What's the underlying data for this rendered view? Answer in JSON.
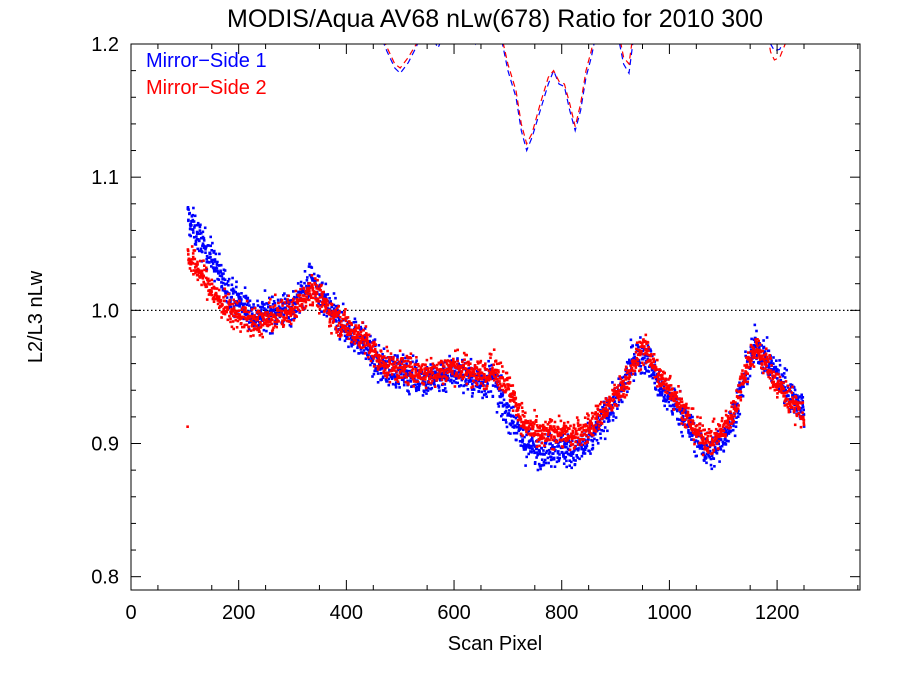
{
  "chart_data": {
    "type": "scatter",
    "title": "MODIS/Aqua AV68 nLw(678) Ratio for 2010 300",
    "xlabel": "Scan Pixel",
    "ylabel": "L2/L3 nLw",
    "xlim": [
      0,
      1354
    ],
    "ylim": [
      0.79,
      1.2
    ],
    "xticks": [
      0,
      200,
      400,
      600,
      800,
      1000,
      1200
    ],
    "xtick_labels": [
      "0",
      "200",
      "400",
      "600",
      "800",
      "1000",
      "1200"
    ],
    "yticks": [
      0.8,
      0.9,
      1.0,
      1.1,
      1.2
    ],
    "ytick_labels": [
      "0.8",
      "0.9",
      "1.0",
      "1.1",
      "1.2"
    ],
    "reference_line": {
      "y": 1.0,
      "style": "dotted",
      "color": "#000000"
    },
    "legend": {
      "position": "top-left",
      "entries": [
        "Mirror−Side 1",
        "Mirror−Side 2"
      ]
    },
    "grid": false,
    "series": [
      {
        "name": "Mirror−Side 1",
        "color": "#0000ff",
        "marker": "points",
        "curve": [
          [
            105,
            1.07
          ],
          [
            130,
            1.052
          ],
          [
            150,
            1.04
          ],
          [
            170,
            1.022
          ],
          [
            190,
            1.01
          ],
          [
            210,
            1.004
          ],
          [
            230,
            0.996
          ],
          [
            250,
            0.998
          ],
          [
            270,
            1.0
          ],
          [
            300,
            1.002
          ],
          [
            320,
            1.013
          ],
          [
            335,
            1.024
          ],
          [
            350,
            1.01
          ],
          [
            370,
            1.0
          ],
          [
            400,
            0.986
          ],
          [
            430,
            0.977
          ],
          [
            460,
            0.958
          ],
          [
            490,
            0.955
          ],
          [
            520,
            0.952
          ],
          [
            550,
            0.948
          ],
          [
            575,
            0.95
          ],
          [
            600,
            0.955
          ],
          [
            625,
            0.95
          ],
          [
            650,
            0.945
          ],
          [
            670,
            0.95
          ],
          [
            690,
            0.93
          ],
          [
            710,
            0.918
          ],
          [
            730,
            0.9
          ],
          [
            760,
            0.895
          ],
          [
            790,
            0.898
          ],
          [
            820,
            0.893
          ],
          [
            850,
            0.9
          ],
          [
            880,
            0.92
          ],
          [
            910,
            0.937
          ],
          [
            930,
            0.962
          ],
          [
            950,
            0.968
          ],
          [
            965,
            0.96
          ],
          [
            980,
            0.942
          ],
          [
            1000,
            0.935
          ],
          [
            1020,
            0.925
          ],
          [
            1040,
            0.91
          ],
          [
            1060,
            0.898
          ],
          [
            1080,
            0.893
          ],
          [
            1100,
            0.905
          ],
          [
            1120,
            0.92
          ],
          [
            1140,
            0.95
          ],
          [
            1160,
            0.975
          ],
          [
            1180,
            0.962
          ],
          [
            1200,
            0.952
          ],
          [
            1220,
            0.94
          ],
          [
            1240,
            0.93
          ],
          [
            1250,
            0.925
          ]
        ],
        "scatter": 0.013
      },
      {
        "name": "Mirror−Side 2",
        "color": "#ff0000",
        "marker": "points",
        "curve": [
          [
            105,
            1.04
          ],
          [
            130,
            1.028
          ],
          [
            150,
            1.015
          ],
          [
            170,
            1.004
          ],
          [
            190,
            0.998
          ],
          [
            210,
            0.995
          ],
          [
            230,
            0.99
          ],
          [
            250,
            0.992
          ],
          [
            270,
            0.996
          ],
          [
            300,
            1.0
          ],
          [
            320,
            1.01
          ],
          [
            335,
            1.018
          ],
          [
            350,
            1.01
          ],
          [
            370,
            0.998
          ],
          [
            400,
            0.988
          ],
          [
            430,
            0.98
          ],
          [
            460,
            0.962
          ],
          [
            490,
            0.957
          ],
          [
            520,
            0.955
          ],
          [
            550,
            0.952
          ],
          [
            575,
            0.955
          ],
          [
            600,
            0.958
          ],
          [
            625,
            0.955
          ],
          [
            650,
            0.952
          ],
          [
            670,
            0.956
          ],
          [
            690,
            0.95
          ],
          [
            710,
            0.935
          ],
          [
            730,
            0.915
          ],
          [
            760,
            0.905
          ],
          [
            790,
            0.91
          ],
          [
            820,
            0.905
          ],
          [
            850,
            0.912
          ],
          [
            880,
            0.925
          ],
          [
            910,
            0.94
          ],
          [
            930,
            0.955
          ],
          [
            950,
            0.972
          ],
          [
            965,
            0.965
          ],
          [
            980,
            0.95
          ],
          [
            1000,
            0.943
          ],
          [
            1020,
            0.93
          ],
          [
            1040,
            0.915
          ],
          [
            1060,
            0.905
          ],
          [
            1080,
            0.902
          ],
          [
            1100,
            0.91
          ],
          [
            1120,
            0.925
          ],
          [
            1140,
            0.955
          ],
          [
            1160,
            0.972
          ],
          [
            1180,
            0.96
          ],
          [
            1200,
            0.945
          ],
          [
            1220,
            0.935
          ],
          [
            1240,
            0.925
          ],
          [
            1250,
            0.92
          ]
        ],
        "scatter": 0.011
      }
    ],
    "dashed_lines": [
      {
        "name": "Mirror−Side 1 dashed",
        "color": "#0000ff",
        "points": [
          [
            460,
            1.21
          ],
          [
            475,
            1.195
          ],
          [
            490,
            1.182
          ],
          [
            500,
            1.178
          ],
          [
            515,
            1.186
          ],
          [
            530,
            1.198
          ],
          [
            545,
            1.214
          ],
          [
            560,
            1.205
          ],
          [
            570,
            1.197
          ],
          [
            585,
            1.21
          ],
          [
            605,
            1.23
          ],
          [
            625,
            1.21
          ],
          [
            640,
            1.2
          ],
          [
            660,
            1.225
          ],
          [
            675,
            1.208
          ],
          [
            690,
            1.2
          ],
          [
            700,
            1.18
          ],
          [
            715,
            1.16
          ],
          [
            725,
            1.135
          ],
          [
            735,
            1.12
          ],
          [
            745,
            1.13
          ],
          [
            760,
            1.15
          ],
          [
            775,
            1.17
          ],
          [
            785,
            1.18
          ],
          [
            795,
            1.17
          ],
          [
            805,
            1.168
          ],
          [
            815,
            1.15
          ],
          [
            825,
            1.135
          ],
          [
            835,
            1.15
          ],
          [
            845,
            1.175
          ],
          [
            855,
            1.19
          ],
          [
            865,
            1.21
          ],
          [
            880,
            1.23
          ],
          [
            895,
            1.235
          ],
          [
            905,
            1.205
          ],
          [
            915,
            1.185
          ],
          [
            925,
            1.178
          ],
          [
            935,
            1.21
          ]
        ]
      },
      {
        "name": "Mirror−Side 2 dashed",
        "color": "#ff0000",
        "points": [
          [
            460,
            1.21
          ],
          [
            475,
            1.198
          ],
          [
            490,
            1.185
          ],
          [
            500,
            1.182
          ],
          [
            515,
            1.19
          ],
          [
            530,
            1.2
          ],
          [
            545,
            1.215
          ],
          [
            560,
            1.208
          ],
          [
            570,
            1.2
          ],
          [
            585,
            1.214
          ],
          [
            605,
            1.235
          ],
          [
            625,
            1.215
          ],
          [
            640,
            1.203
          ],
          [
            660,
            1.228
          ],
          [
            675,
            1.212
          ],
          [
            690,
            1.203
          ],
          [
            700,
            1.185
          ],
          [
            715,
            1.165
          ],
          [
            725,
            1.14
          ],
          [
            735,
            1.125
          ],
          [
            745,
            1.133
          ],
          [
            760,
            1.155
          ],
          [
            775,
            1.175
          ],
          [
            785,
            1.18
          ],
          [
            795,
            1.172
          ],
          [
            805,
            1.17
          ],
          [
            815,
            1.155
          ],
          [
            825,
            1.138
          ],
          [
            835,
            1.155
          ],
          [
            845,
            1.18
          ],
          [
            855,
            1.195
          ],
          [
            865,
            1.215
          ],
          [
            880,
            1.235
          ],
          [
            895,
            1.24
          ],
          [
            905,
            1.21
          ],
          [
            915,
            1.19
          ],
          [
            925,
            1.185
          ],
          [
            935,
            1.215
          ]
        ]
      },
      {
        "name": "Mirror−Side 1 dashed right",
        "color": "#0000ff",
        "points": [
          [
            1180,
            1.215
          ],
          [
            1188,
            1.2
          ],
          [
            1195,
            1.195
          ],
          [
            1205,
            1.196
          ],
          [
            1215,
            1.205
          ]
        ]
      },
      {
        "name": "Mirror−Side 2 dashed right",
        "color": "#ff0000",
        "points": [
          [
            1180,
            1.212
          ],
          [
            1188,
            1.194
          ],
          [
            1195,
            1.188
          ],
          [
            1205,
            1.19
          ],
          [
            1215,
            1.2
          ]
        ]
      }
    ]
  }
}
